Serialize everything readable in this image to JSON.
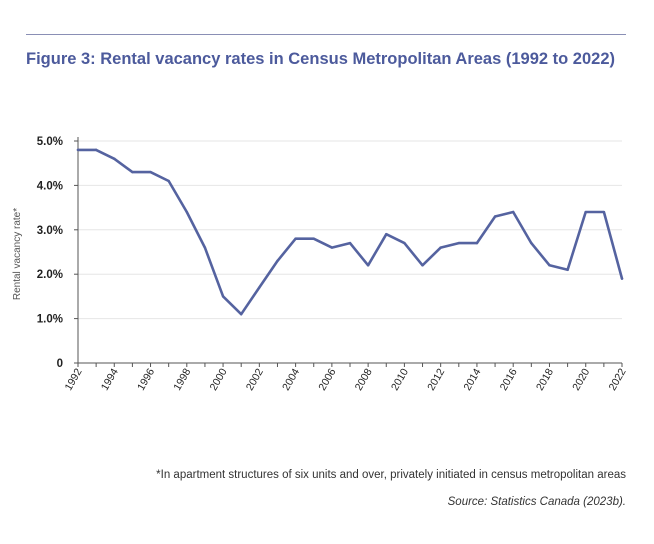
{
  "figure": {
    "title": "Figure 3: Rental vacancy rates in Census Metropolitan Areas (1992 to 2022)",
    "footnote": "*In apartment structures of six units and over, privately initiated in census metropolitan areas",
    "source": "Source: Statistics Canada (2023b).",
    "accent_color": "#5563a0",
    "rule_color": "#8a8fb5"
  },
  "chart_data": {
    "type": "line",
    "title": "",
    "xlabel": "",
    "ylabel": "Rental vacancy rate*",
    "ylim": [
      0,
      5
    ],
    "y_ticks": [
      {
        "value": 0,
        "label": "0"
      },
      {
        "value": 1,
        "label": "1.0%"
      },
      {
        "value": 2,
        "label": "2.0%"
      },
      {
        "value": 3,
        "label": "3.0%"
      },
      {
        "value": 4,
        "label": "4.0%"
      },
      {
        "value": 5,
        "label": "5.0%"
      }
    ],
    "x_tick_labels": [
      "1992",
      "1994",
      "1996",
      "1998",
      "2000",
      "2002",
      "2004",
      "2006",
      "2008",
      "2010",
      "2012",
      "2014",
      "2016",
      "2018",
      "2020",
      "2022"
    ],
    "grid": true,
    "series": [
      {
        "color": "#5563a0",
        "x": [
          1992,
          1993,
          1994,
          1995,
          1996,
          1997,
          1998,
          1999,
          2000,
          2001,
          2002,
          2003,
          2004,
          2005,
          2006,
          2007,
          2008,
          2009,
          2010,
          2011,
          2012,
          2013,
          2014,
          2015,
          2016,
          2017,
          2018,
          2019,
          2020,
          2021,
          2022
        ],
        "values": [
          4.8,
          4.8,
          4.6,
          4.3,
          4.3,
          4.1,
          3.4,
          2.6,
          1.5,
          1.1,
          1.7,
          2.3,
          2.8,
          2.8,
          2.6,
          2.7,
          2.2,
          2.9,
          2.7,
          2.2,
          2.6,
          2.7,
          2.7,
          3.3,
          3.4,
          2.7,
          2.2,
          2.1,
          3.4,
          3.4,
          1.9
        ]
      }
    ]
  }
}
